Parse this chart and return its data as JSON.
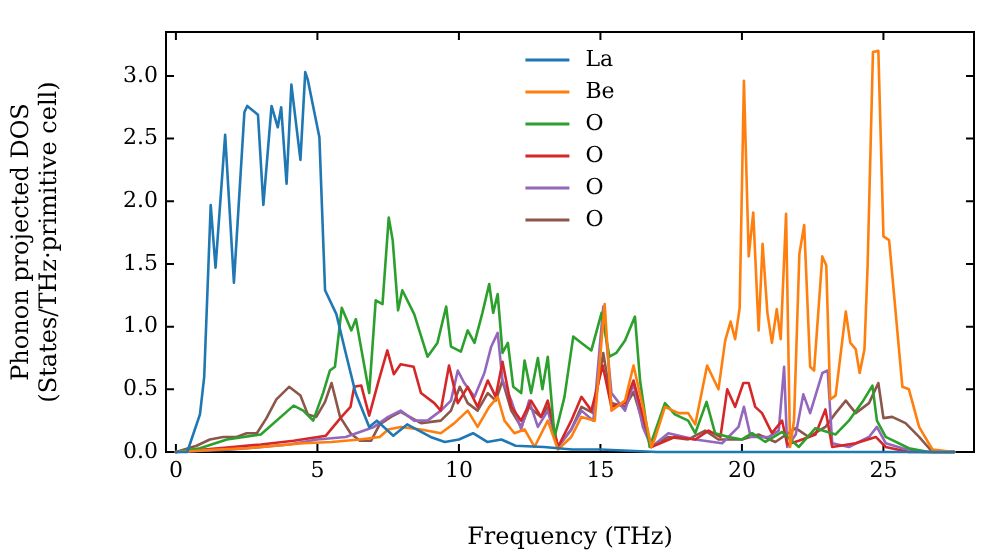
{
  "chart_data": {
    "type": "line",
    "xlabel": "Frequency (THz)",
    "ylabel": "Phonon projected DOS\n(States/THz·primitive cell)",
    "xlim": [
      -0.35,
      28.2
    ],
    "ylim": [
      0,
      3.35
    ],
    "xticks": [
      0,
      5,
      10,
      15,
      20,
      25
    ],
    "yticks": [
      {
        "value": 0,
        "label": "0.0"
      },
      0.5,
      {
        "value": 1,
        "label": "1.0"
      },
      1.5,
      {
        "value": 2,
        "label": "2.0"
      },
      2.5,
      {
        "value": 3,
        "label": "3.0"
      }
    ],
    "grid": false,
    "legend": "top",
    "series": [
      {
        "name": "La",
        "color": "#1f77b4",
        "x": [
          0,
          0.4,
          0.85,
          1.0,
          1.23,
          1.4,
          1.74,
          2.05,
          2.42,
          2.52,
          2.9,
          3.09,
          3.38,
          3.6,
          3.72,
          3.91,
          4.08,
          4.4,
          4.57,
          4.66,
          5.07,
          5.27,
          5.67,
          6.0,
          6.35,
          6.83,
          7.1,
          7.68,
          8.17,
          9.0,
          9.5,
          10.0,
          10.5,
          11.0,
          11.5,
          12.0,
          13.0,
          14.0,
          15.0,
          16.0,
          17.0,
          27.5
        ],
        "values": [
          0,
          0,
          0.3,
          0.6,
          1.97,
          1.47,
          2.53,
          1.35,
          2.71,
          2.76,
          2.69,
          1.97,
          2.76,
          2.59,
          2.75,
          2.14,
          2.93,
          2.33,
          3.03,
          2.97,
          2.51,
          1.29,
          1.1,
          0.79,
          0.47,
          0.2,
          0.25,
          0.13,
          0.22,
          0.12,
          0.08,
          0.1,
          0.15,
          0.08,
          0.1,
          0.05,
          0.04,
          0.02,
          0.02,
          0.01,
          0,
          0
        ]
      },
      {
        "name": "Be",
        "color": "#ff7f0e",
        "x": [
          0,
          1.5,
          2.5,
          3.5,
          4.5,
          5.5,
          6.5,
          7.2,
          7.5,
          7.94,
          8.66,
          9.36,
          9.84,
          10.31,
          10.66,
          11.07,
          11.37,
          11.61,
          11.96,
          12.32,
          12.67,
          13.14,
          13.5,
          13.97,
          14.33,
          14.8,
          15.15,
          15.39,
          15.87,
          16.17,
          16.5,
          16.8,
          16.93,
          17.28,
          17.76,
          18.1,
          18.35,
          18.77,
          19.17,
          19.41,
          19.6,
          19.76,
          19.92,
          20.07,
          20.24,
          20.4,
          20.59,
          20.73,
          20.9,
          21.06,
          21.23,
          21.37,
          21.56,
          21.7,
          21.84,
          22.03,
          22.2,
          22.41,
          22.55,
          22.84,
          22.98,
          23.12,
          23.31,
          23.67,
          23.83,
          24.02,
          24.16,
          24.33,
          24.44,
          24.63,
          24.82,
          25.0,
          25.2,
          25.67,
          25.9,
          26.26,
          26.73,
          27.5
        ],
        "values": [
          0,
          0.02,
          0.03,
          0.05,
          0.07,
          0.08,
          0.1,
          0.12,
          0.18,
          0.2,
          0.18,
          0.15,
          0.23,
          0.33,
          0.2,
          0.36,
          0.44,
          0.25,
          0.15,
          0.18,
          0.04,
          0.25,
          0.02,
          0.12,
          0.28,
          0.25,
          1.18,
          0.33,
          0.41,
          0.69,
          0.36,
          0.04,
          0.11,
          0.36,
          0.31,
          0.31,
          0.22,
          0.69,
          0.5,
          0.89,
          1.04,
          0.9,
          1.15,
          2.96,
          1.56,
          1.91,
          0.97,
          1.66,
          1.11,
          0.87,
          1.14,
          0.9,
          1.9,
          0.04,
          0.25,
          1.58,
          1.81,
          0.68,
          0.65,
          1.56,
          1.49,
          0.42,
          0.45,
          1.12,
          0.87,
          0.82,
          0.63,
          0.82,
          1.48,
          3.19,
          3.2,
          1.72,
          1.69,
          0.52,
          0.5,
          0.2,
          0.02,
          0
        ]
      },
      {
        "name": "O",
        "color": "#2ca02c",
        "x": [
          0,
          0.85,
          1.8,
          3.0,
          4.16,
          4.5,
          4.85,
          5.2,
          5.44,
          5.62,
          5.86,
          6.2,
          6.36,
          6.83,
          7.06,
          7.3,
          7.52,
          7.66,
          7.85,
          8.0,
          8.42,
          8.89,
          9.24,
          9.55,
          9.72,
          10.07,
          10.31,
          10.55,
          10.83,
          11.07,
          11.21,
          11.37,
          11.54,
          11.73,
          11.92,
          12.2,
          12.32,
          12.55,
          12.79,
          12.95,
          13.14,
          13.38,
          13.73,
          14.04,
          14.33,
          14.68,
          15.04,
          15.32,
          15.56,
          15.87,
          16.22,
          16.4,
          16.74,
          17.28,
          17.63,
          18.1,
          18.35,
          18.75,
          19.05,
          19.53,
          20.0,
          20.36,
          20.83,
          21.42,
          22.01,
          22.6,
          23.31,
          23.78,
          24.26,
          24.61,
          24.77,
          25.08,
          25.9,
          26.6,
          27.5
        ],
        "values": [
          0,
          0.03,
          0.1,
          0.14,
          0.37,
          0.33,
          0.25,
          0.47,
          0.65,
          0.68,
          1.15,
          0.97,
          1.06,
          0.47,
          1.21,
          1.18,
          1.87,
          1.69,
          1.13,
          1.29,
          1.1,
          0.76,
          0.87,
          1.16,
          0.84,
          0.8,
          0.97,
          0.87,
          1.11,
          1.34,
          1.11,
          1.26,
          0.79,
          0.87,
          0.52,
          0.47,
          0.73,
          0.47,
          0.75,
          0.5,
          0.76,
          0.12,
          0.44,
          0.92,
          0.87,
          0.81,
          1.11,
          0.76,
          0.79,
          0.89,
          1.08,
          0.57,
          0.04,
          0.39,
          0.3,
          0.25,
          0.15,
          0.4,
          0.15,
          0.12,
          0.1,
          0.15,
          0.08,
          0.16,
          0.04,
          0.19,
          0.14,
          0.25,
          0.4,
          0.53,
          0.25,
          0.12,
          0.03,
          0,
          0
        ]
      },
      {
        "name": "O",
        "color": "#d62728",
        "x": [
          0,
          1.0,
          2.0,
          3.0,
          4.16,
          5.3,
          5.85,
          6.17,
          6.3,
          6.55,
          6.83,
          7.14,
          7.47,
          7.7,
          7.94,
          8.4,
          8.66,
          9.13,
          9.36,
          9.65,
          9.96,
          10.31,
          10.66,
          11.02,
          11.3,
          11.54,
          11.85,
          12.2,
          12.55,
          12.9,
          13.14,
          13.5,
          13.97,
          14.33,
          14.68,
          15.08,
          15.39,
          15.87,
          16.17,
          16.45,
          16.8,
          17.63,
          18.35,
          18.82,
          19.24,
          19.48,
          19.76,
          20.05,
          20.24,
          20.47,
          20.71,
          21.06,
          21.42,
          21.6,
          22.01,
          22.6,
          22.95,
          23.19,
          24.02,
          24.73,
          25.08,
          25.9,
          27.5
        ],
        "values": [
          0,
          0.02,
          0.04,
          0.06,
          0.09,
          0.13,
          0.28,
          0.36,
          0.52,
          0.53,
          0.29,
          0.55,
          0.81,
          0.62,
          0.7,
          0.68,
          0.47,
          0.39,
          0.33,
          0.69,
          0.39,
          0.52,
          0.36,
          0.57,
          0.44,
          0.72,
          0.36,
          0.25,
          0.41,
          0.28,
          0.41,
          0.04,
          0.25,
          0.44,
          0.33,
          0.69,
          0.36,
          0.39,
          0.57,
          0.33,
          0.04,
          0.12,
          0.1,
          0.17,
          0.12,
          0.5,
          0.36,
          0.55,
          0.55,
          0.36,
          0.31,
          0.15,
          0.25,
          0.06,
          0.09,
          0.14,
          0.34,
          0.04,
          0.07,
          0.12,
          0.04,
          0,
          0
        ]
      },
      {
        "name": "O",
        "color": "#9467bd",
        "x": [
          0,
          2.0,
          4.0,
          5.0,
          6.0,
          7.0,
          7.5,
          7.94,
          8.42,
          8.89,
          9.36,
          9.72,
          9.96,
          10.19,
          10.55,
          10.9,
          11.14,
          11.37,
          11.54,
          11.85,
          12.2,
          12.48,
          12.79,
          13.14,
          13.5,
          13.97,
          14.33,
          14.75,
          15.1,
          15.39,
          15.87,
          16.17,
          16.5,
          16.8,
          17.4,
          18.35,
          19.3,
          19.88,
          20.07,
          20.31,
          20.95,
          21.3,
          21.49,
          21.6,
          21.9,
          22.17,
          22.41,
          22.84,
          23.03,
          23.19,
          23.78,
          24.49,
          24.77,
          25.08,
          25.67,
          26.4,
          27.5
        ],
        "values": [
          0,
          0.02,
          0.06,
          0.1,
          0.12,
          0.2,
          0.28,
          0.33,
          0.25,
          0.25,
          0.33,
          0.41,
          0.65,
          0.55,
          0.44,
          0.63,
          0.84,
          0.95,
          0.57,
          0.41,
          0.18,
          0.41,
          0.2,
          0.33,
          0.04,
          0.18,
          0.33,
          0.25,
          1.16,
          0.47,
          0.33,
          0.55,
          0.2,
          0.04,
          0.15,
          0.1,
          0.07,
          0.2,
          0.36,
          0.12,
          0.12,
          0.17,
          0.68,
          0.04,
          0.14,
          0.46,
          0.31,
          0.63,
          0.65,
          0.07,
          0.04,
          0.12,
          0.2,
          0.07,
          0.03,
          0,
          0
        ]
      },
      {
        "name": "O",
        "color": "#8c564b",
        "x": [
          0,
          0.73,
          1.2,
          1.67,
          2.14,
          2.5,
          2.86,
          3.2,
          3.55,
          4.0,
          4.4,
          4.66,
          4.96,
          5.27,
          5.5,
          5.8,
          6.17,
          6.5,
          6.9,
          7.2,
          7.6,
          7.94,
          8.66,
          9.36,
          9.72,
          10.03,
          10.31,
          10.66,
          11.02,
          11.3,
          11.54,
          11.85,
          12.2,
          12.48,
          12.9,
          13.14,
          13.5,
          13.97,
          14.33,
          14.75,
          15.1,
          15.39,
          15.87,
          16.17,
          16.5,
          16.8,
          17.4,
          18.1,
          18.7,
          19.17,
          20.0,
          20.59,
          21.18,
          21.9,
          22.36,
          22.95,
          23.31,
          23.67,
          24.02,
          24.49,
          24.82,
          25.0,
          25.31,
          25.78,
          26.26,
          26.73,
          27.5
        ],
        "values": [
          0,
          0.05,
          0.1,
          0.12,
          0.12,
          0.15,
          0.15,
          0.27,
          0.42,
          0.52,
          0.45,
          0.3,
          0.28,
          0.4,
          0.55,
          0.28,
          0.15,
          0.09,
          0.09,
          0.22,
          0.28,
          0.32,
          0.23,
          0.25,
          0.33,
          0.52,
          0.39,
          0.33,
          0.47,
          0.41,
          0.57,
          0.33,
          0.2,
          0.36,
          0.28,
          0.36,
          0.04,
          0.18,
          0.36,
          0.31,
          0.79,
          0.39,
          0.36,
          0.48,
          0.23,
          0.04,
          0.12,
          0.1,
          0.17,
          0.1,
          0.1,
          0.14,
          0.08,
          0.19,
          0.12,
          0.2,
          0.31,
          0.41,
          0.31,
          0.39,
          0.55,
          0.27,
          0.28,
          0.23,
          0.12,
          0,
          0
        ]
      }
    ]
  }
}
